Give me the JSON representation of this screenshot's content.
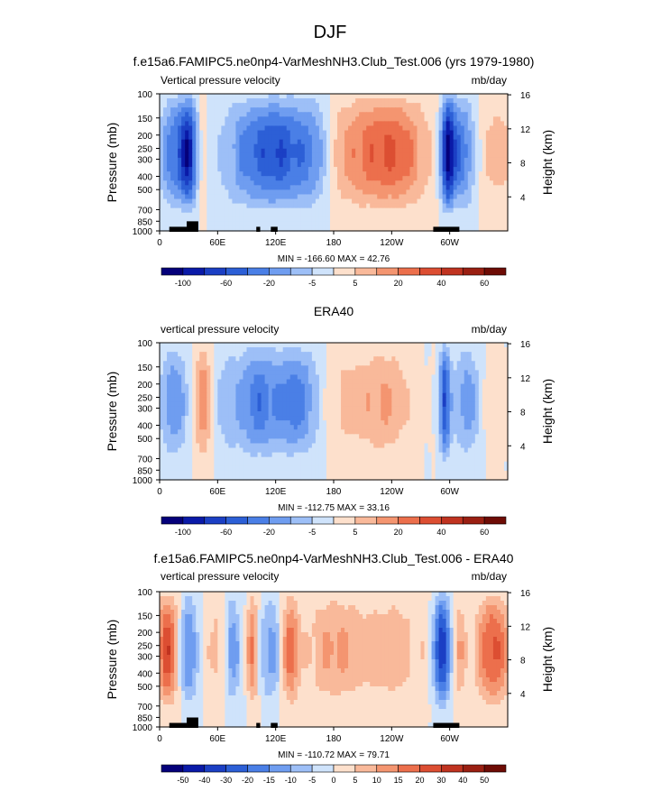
{
  "figure": {
    "title": "DJF"
  },
  "chart_data": [
    {
      "type": "heatmap",
      "title": "f.e15a6.FAMIPC5.ne0np4-VarMeshNH3.Club_Test.006 (yrs 1979-1980)",
      "left_string": "Vertical pressure velocity",
      "right_string": "mb/day",
      "ylabel": "Pressure (mb)",
      "y2label": "Height (km)",
      "yticks": [
        "100",
        "150",
        "200",
        "250",
        "300",
        "400",
        "500",
        "700",
        "850",
        "1000"
      ],
      "y2ticks": [
        "16",
        "12",
        "8",
        "4"
      ],
      "xticks": [
        "0",
        "60E",
        "120E",
        "180",
        "120W",
        "60W"
      ],
      "stats": "MIN = -166.60  MAX =  42.76",
      "colorbar_labels": [
        "-100",
        "-60",
        "-20",
        "-5",
        "5",
        "20",
        "40",
        "60"
      ],
      "min": -166.6,
      "max": 42.76
    },
    {
      "type": "heatmap",
      "title": "ERA40",
      "left_string": "vertical pressure velocity",
      "right_string": "mb/day",
      "ylabel": "Pressure (mb)",
      "y2label": "Height (km)",
      "yticks": [
        "100",
        "150",
        "200",
        "250",
        "300",
        "400",
        "500",
        "700",
        "850",
        "1000"
      ],
      "y2ticks": [
        "16",
        "12",
        "8",
        "4"
      ],
      "xticks": [
        "0",
        "60E",
        "120E",
        "180",
        "120W",
        "60W"
      ],
      "stats": "MIN = -112.75  MAX =  33.16",
      "colorbar_labels": [
        "-100",
        "-60",
        "-20",
        "-5",
        "5",
        "20",
        "40",
        "60"
      ],
      "min": -112.75,
      "max": 33.16
    },
    {
      "type": "heatmap",
      "title": "f.e15a6.FAMIPC5.ne0np4-VarMeshNH3.Club_Test.006 - ERA40",
      "left_string": "vertical pressure velocity",
      "right_string": "mb/day",
      "ylabel": "Pressure (mb)",
      "y2label": "Height (km)",
      "yticks": [
        "100",
        "150",
        "200",
        "250",
        "300",
        "400",
        "500",
        "700",
        "850",
        "1000"
      ],
      "y2ticks": [
        "16",
        "12",
        "8",
        "4"
      ],
      "xticks": [
        "0",
        "60E",
        "120E",
        "180",
        "120W",
        "60W"
      ],
      "stats": "MIN = -110.72  MAX =  79.71",
      "colorbar_labels": [
        "-50",
        "-40",
        "-30",
        "-20",
        "-15",
        "-10",
        "-5",
        "0",
        "5",
        "10",
        "15",
        "20",
        "30",
        "40",
        "50"
      ],
      "min": -110.72,
      "max": 79.71
    }
  ],
  "palette": {
    "blue_red_16": [
      "#05007a",
      "#0a1aa8",
      "#1b3fc4",
      "#2c5fd6",
      "#4a7fe6",
      "#6f9df0",
      "#9dbff7",
      "#cfe3fb",
      "#fde0cc",
      "#f9b99a",
      "#f49570",
      "#ec6f4c",
      "#dc4e32",
      "#c03320",
      "#9a1f12",
      "#6e0c05"
    ],
    "blue_red_12": [
      "#05007a",
      "#1b3fc4",
      "#3567dc",
      "#5b8eeb",
      "#8fb5f5",
      "#cfe3fb",
      "#fde0cc",
      "#f6a985",
      "#ee7c57",
      "#dd5334",
      "#b8301c",
      "#7a0f07"
    ]
  }
}
